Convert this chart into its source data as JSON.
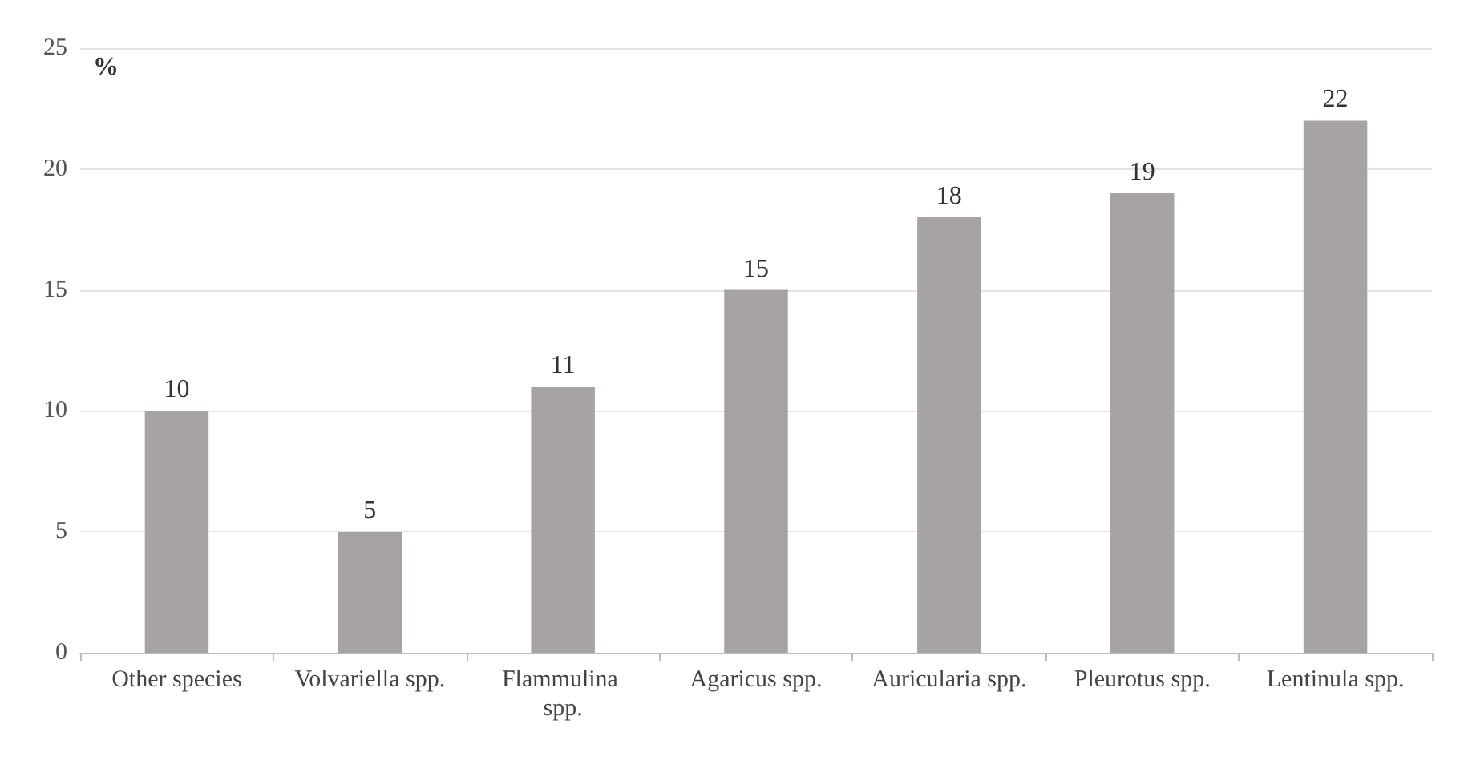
{
  "chart_data": {
    "type": "bar",
    "ylabel": "%",
    "categories": [
      "Other species",
      "Volvariella spp.",
      "Flammulina spp.",
      "Agaricus spp.",
      "Auricularia spp.",
      "Pleurotus spp.",
      "Lentinula spp."
    ],
    "values": [
      10,
      5,
      11,
      15,
      18,
      19,
      22
    ],
    "color": "#a7a3a3",
    "ylim": [
      0,
      25
    ],
    "yticks": [
      0,
      5,
      10,
      15,
      20,
      25
    ],
    "grid": "y",
    "data_labels": true
  }
}
